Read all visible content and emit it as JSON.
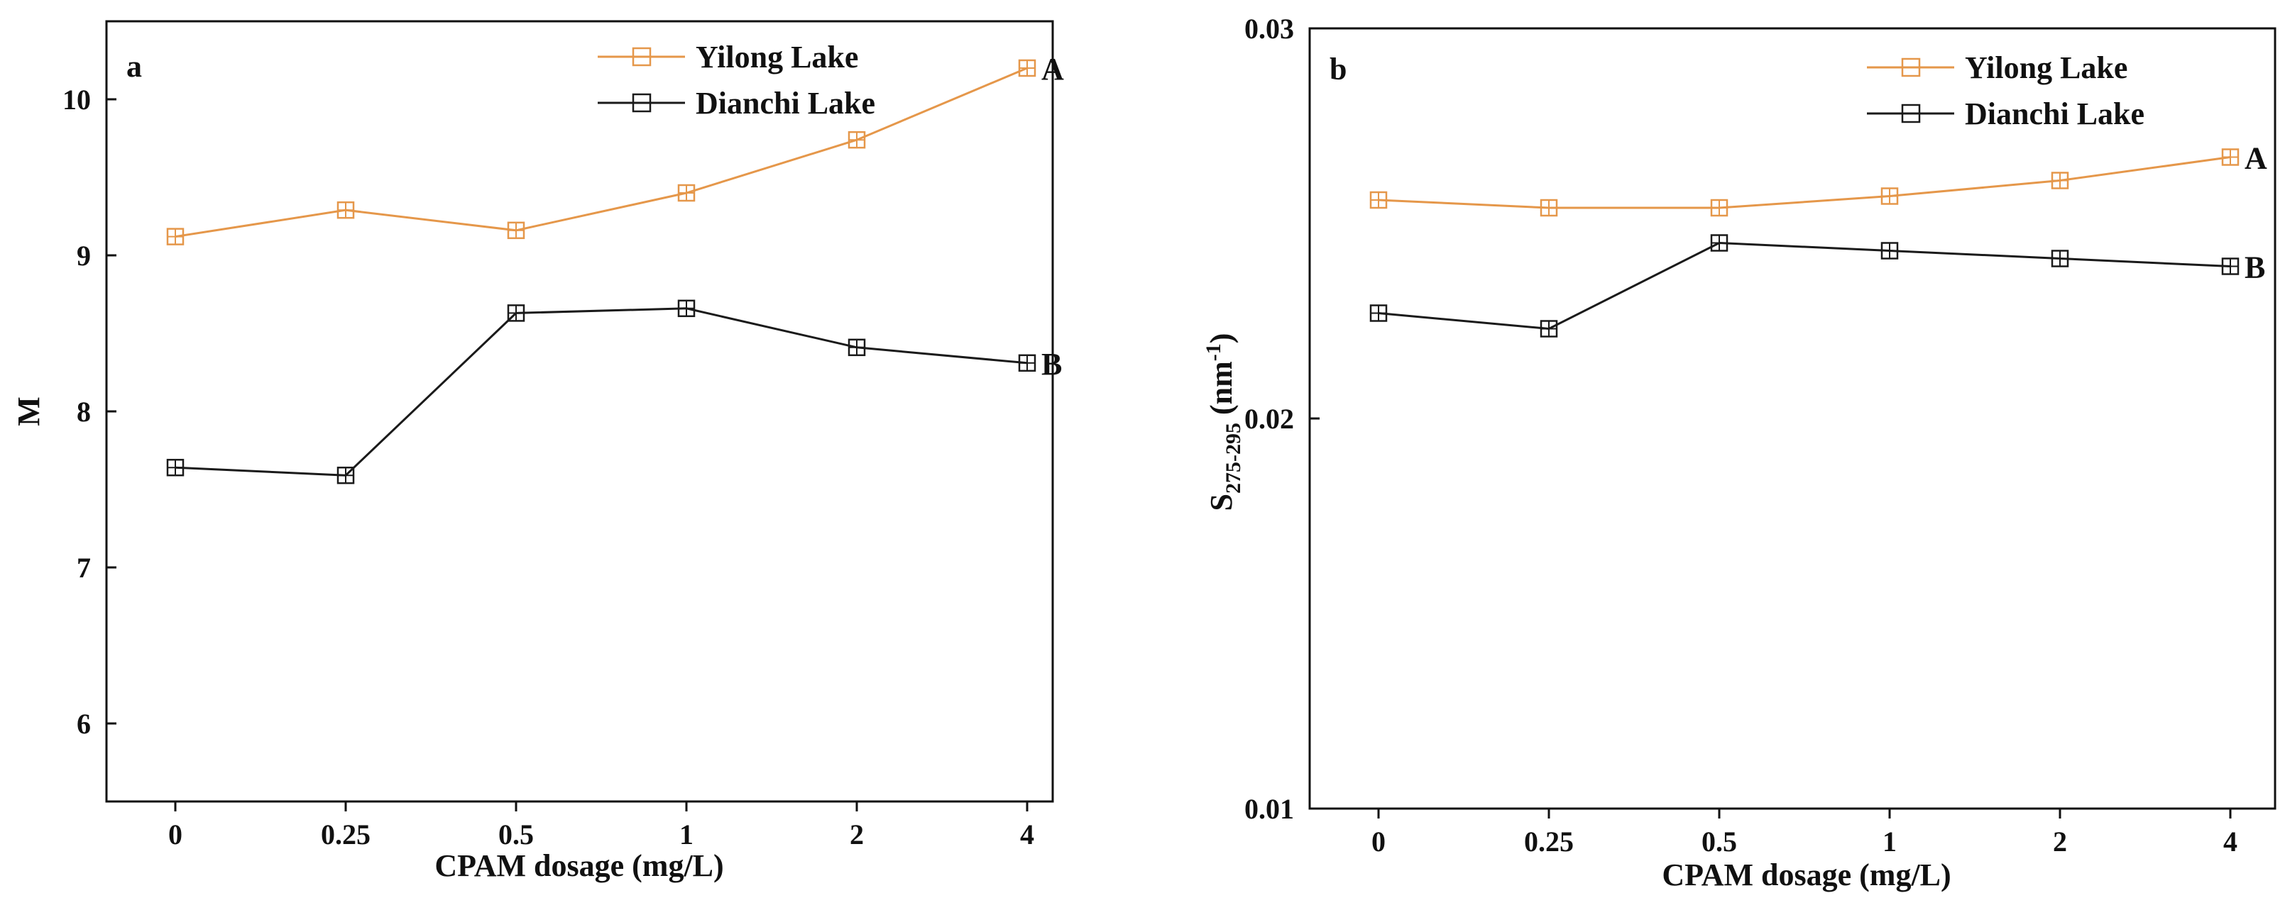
{
  "colors": {
    "yilong": "#E5974A",
    "dianchi": "#1a1a1a",
    "axis": "#111111"
  },
  "chart_data": [
    {
      "type": "line",
      "panel_label": "a",
      "title": "",
      "xlabel": "CPAM dosage (mg/L)",
      "ylabel": "M",
      "categories": [
        "0",
        "0.25",
        "0.5",
        "1",
        "2",
        "4"
      ],
      "ylim": [
        5.5,
        10.5
      ],
      "yticks": [
        6,
        7,
        8,
        9,
        10
      ],
      "ytick_labels": [
        "6",
        "7",
        "8",
        "9",
        "10"
      ],
      "grid": false,
      "legend_position": "top-right",
      "series": [
        {
          "name": "Yilong Lake",
          "color": "#E5974A",
          "end_label": "A",
          "values": [
            9.12,
            9.29,
            9.16,
            9.4,
            9.74,
            10.2
          ]
        },
        {
          "name": "Dianchi Lake",
          "color": "#1a1a1a",
          "end_label": "B",
          "values": [
            7.64,
            7.59,
            8.63,
            8.66,
            8.41,
            8.31
          ]
        }
      ]
    },
    {
      "type": "line",
      "panel_label": "b",
      "title": "",
      "xlabel": "CPAM dosage (mg/L)",
      "ylabel": "S",
      "ylabel_sub": "275-295",
      "ylabel_unit_open": " (nm",
      "ylabel_sup": "-1",
      "ylabel_unit_close": ")",
      "categories": [
        "0",
        "0.25",
        "0.5",
        "1",
        "2",
        "4"
      ],
      "ylim": [
        0.01,
        0.03
      ],
      "yticks": [
        0.01,
        0.02,
        0.03
      ],
      "ytick_labels": [
        "0.01",
        "0.02",
        "0.03"
      ],
      "grid": false,
      "legend_position": "top-right",
      "series": [
        {
          "name": "Yilong Lake",
          "color": "#E5974A",
          "end_label": "A",
          "values": [
            0.0256,
            0.0254,
            0.0254,
            0.0257,
            0.0261,
            0.0267
          ]
        },
        {
          "name": "Dianchi Lake",
          "color": "#1a1a1a",
          "end_label": "B",
          "values": [
            0.0227,
            0.0223,
            0.0245,
            0.0243,
            0.0241,
            0.0239
          ]
        }
      ]
    }
  ]
}
